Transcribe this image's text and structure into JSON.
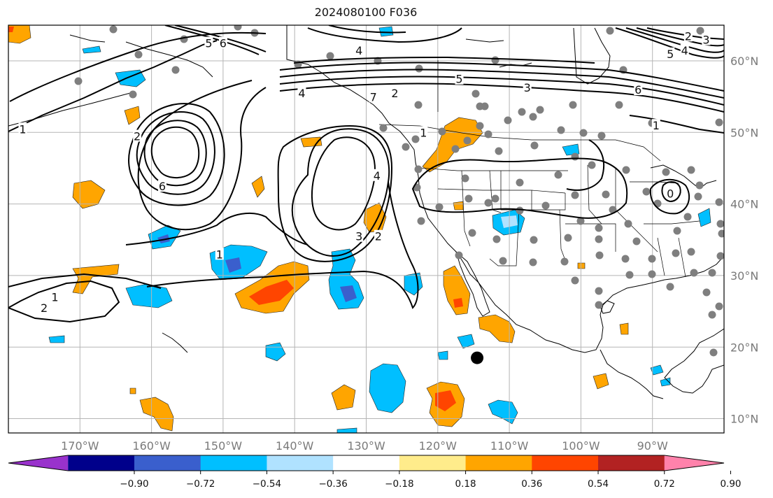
{
  "title": "2024080100 F036",
  "map": {
    "lon_range": [
      -180,
      -80
    ],
    "lat_range": [
      8,
      65
    ],
    "lon_ticks": [
      {
        "value": -170,
        "label": "170°W"
      },
      {
        "value": -160,
        "label": "160°W"
      },
      {
        "value": -150,
        "label": "150°W"
      },
      {
        "value": -140,
        "label": "140°W"
      },
      {
        "value": -130,
        "label": "130°W"
      },
      {
        "value": -120,
        "label": "120°W"
      },
      {
        "value": -110,
        "label": "110°W"
      },
      {
        "value": -100,
        "label": "100°W"
      },
      {
        "value": -90,
        "label": "90°W"
      }
    ],
    "lat_ticks": [
      {
        "value": 10,
        "label": "10°N"
      },
      {
        "value": 20,
        "label": "20°N"
      },
      {
        "value": 30,
        "label": "30°N"
      },
      {
        "value": 40,
        "label": "40°N"
      },
      {
        "value": 50,
        "label": "50°N"
      },
      {
        "value": 60,
        "label": "60°N"
      }
    ],
    "contour_labels": [
      {
        "text": "6",
        "lon": -150,
        "lat": 62.5
      },
      {
        "text": "5",
        "lon": -152,
        "lat": 62.5
      },
      {
        "text": "4",
        "lon": -131,
        "lat": 61.5
      },
      {
        "text": "4",
        "lon": -139,
        "lat": 55.5
      },
      {
        "text": "7",
        "lon": -129,
        "lat": 55.0
      },
      {
        "text": "2",
        "lon": -126,
        "lat": 55.5
      },
      {
        "text": "5",
        "lon": -117,
        "lat": 57.5
      },
      {
        "text": "3",
        "lon": -107.5,
        "lat": 56.3
      },
      {
        "text": "6",
        "lon": -92,
        "lat": 56.0
      },
      {
        "text": "2",
        "lon": -85,
        "lat": 63.5
      },
      {
        "text": "3",
        "lon": -82.5,
        "lat": 63.0
      },
      {
        "text": "5",
        "lon": -87.5,
        "lat": 61.0
      },
      {
        "text": "4",
        "lon": -85.5,
        "lat": 61.5
      },
      {
        "text": "1",
        "lon": -178,
        "lat": 50.5
      },
      {
        "text": "2",
        "lon": -162,
        "lat": 49.5
      },
      {
        "text": "6",
        "lon": -158.5,
        "lat": 42.5
      },
      {
        "text": "4",
        "lon": -128.5,
        "lat": 44.0
      },
      {
        "text": "3",
        "lon": -131,
        "lat": 35.5
      },
      {
        "text": "2",
        "lon": -128.3,
        "lat": 35.5
      },
      {
        "text": "1",
        "lon": -122,
        "lat": 50.0
      },
      {
        "text": "1",
        "lon": -150.5,
        "lat": 33.0
      },
      {
        "text": "1",
        "lon": -173.5,
        "lat": 27.0
      },
      {
        "text": "2",
        "lon": -175,
        "lat": 25.5
      },
      {
        "text": "1",
        "lon": -89.5,
        "lat": 51.0
      },
      {
        "text": "0",
        "lon": -87.5,
        "lat": 41.5
      }
    ],
    "large_marker": {
      "lon": -114.5,
      "lat": 18.5
    }
  },
  "colorbar": {
    "ticks": [
      "−0.90",
      "−0.72",
      "−0.54",
      "−0.36",
      "−0.18",
      "0.18",
      "0.36",
      "0.54",
      "0.72",
      "0.90"
    ],
    "colors": [
      "#9932cc",
      "#00008b",
      "#3a5fcd",
      "#00bfff",
      "#b0e2ff",
      "#ffffff",
      "#ffec8b",
      "#ffa500",
      "#ff4500",
      "#b22222",
      "#ff82ab"
    ]
  }
}
